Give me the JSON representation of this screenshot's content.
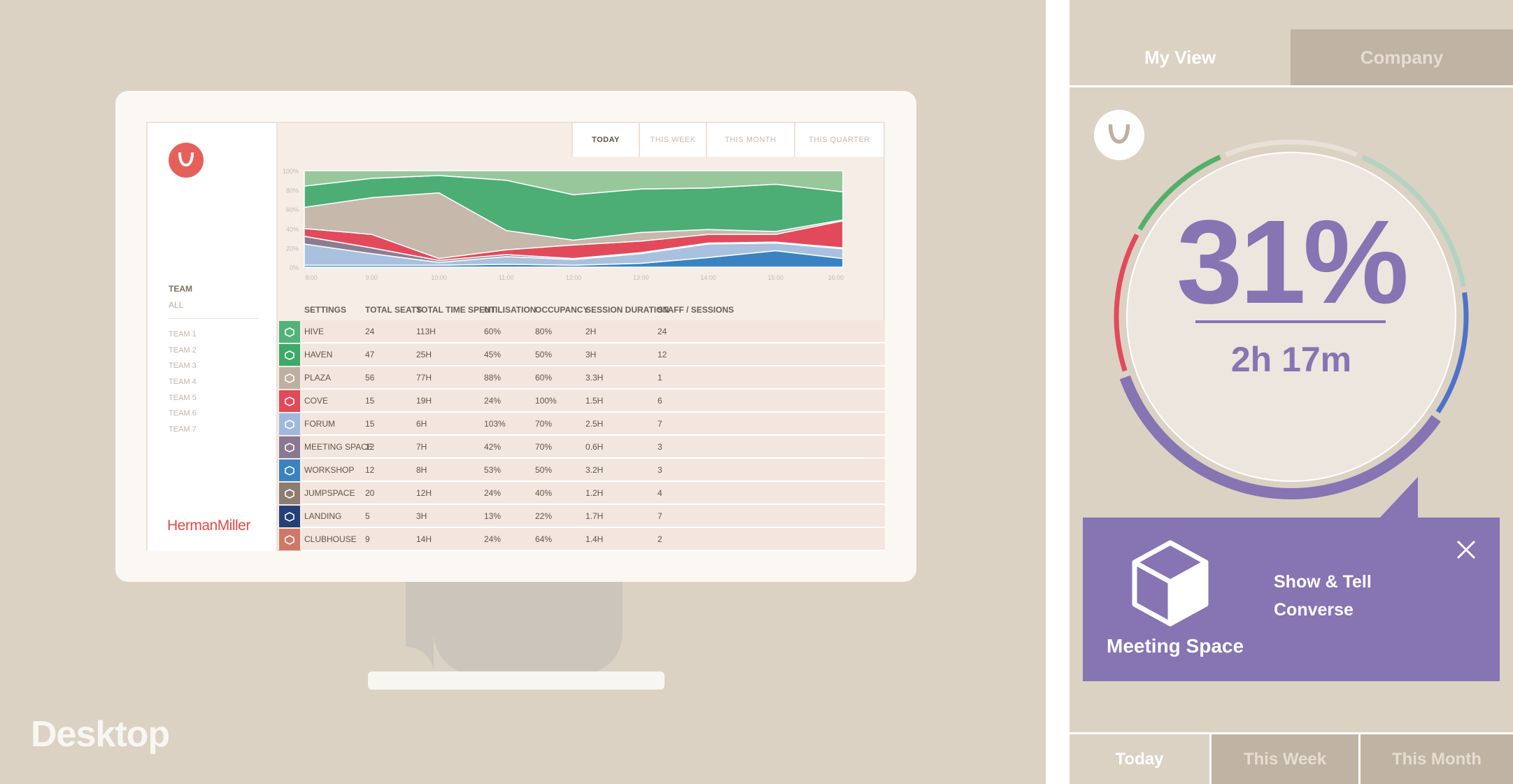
{
  "desktop": {
    "label": "Desktop",
    "brand": "HermanMiller",
    "sidebar": {
      "team_heading": "TEAM",
      "team_all": "ALL",
      "teams": [
        "TEAM 1",
        "TEAM 2",
        "TEAM 3",
        "TEAM 4",
        "TEAM 5",
        "TEAM 6",
        "TEAM 7"
      ]
    },
    "period_tabs": [
      {
        "label": "TODAY",
        "active": true
      },
      {
        "label": "THIS WEEK",
        "active": false
      },
      {
        "label": "THIS MONTH",
        "active": false
      },
      {
        "label": "THIS QUARTER",
        "active": false
      }
    ],
    "table": {
      "headers": [
        "SETTINGS",
        "TOTAL SEATS",
        "TOTAL TIME SPENT",
        "UTILISATION",
        "OCCUPANCY",
        "SESSION DURATION",
        "STAFF / SESSIONS"
      ],
      "rows": [
        {
          "icon": "hive-icon",
          "color": "#52b37a",
          "cells": [
            "HIVE",
            "24",
            "113H",
            "60%",
            "80%",
            "2H",
            "24"
          ]
        },
        {
          "icon": "haven-icon",
          "color": "#3fa96a",
          "cells": [
            "HAVEN",
            "47",
            "25H",
            "45%",
            "50%",
            "3H",
            "12"
          ]
        },
        {
          "icon": "plaza-icon",
          "color": "#bdb0a2",
          "cells": [
            "PLAZA",
            "56",
            "77H",
            "88%",
            "60%",
            "3.3H",
            "1"
          ]
        },
        {
          "icon": "cove-icon",
          "color": "#e24a5c",
          "cells": [
            "COVE",
            "15",
            "19H",
            "24%",
            "100%",
            "1.5H",
            "6"
          ]
        },
        {
          "icon": "forum-icon",
          "color": "#9fb8dc",
          "cells": [
            "FORUM",
            "15",
            "6H",
            "103%",
            "70%",
            "2.5H",
            "7"
          ]
        },
        {
          "icon": "meeting-space-icon",
          "color": "#8a7792",
          "cells": [
            "MEETING SPACE",
            "12",
            "7H",
            "42%",
            "70%",
            "0.6H",
            "3"
          ]
        },
        {
          "icon": "workshop-icon",
          "color": "#3a83c0",
          "cells": [
            "WORKSHOP",
            "12",
            "8H",
            "53%",
            "50%",
            "3.2H",
            "3"
          ]
        },
        {
          "icon": "jumpspace-icon",
          "color": "#8d7c70",
          "cells": [
            "JUMPSPACE",
            "20",
            "12H",
            "24%",
            "40%",
            "1.2H",
            "4"
          ]
        },
        {
          "icon": "landing-icon",
          "color": "#253f78",
          "cells": [
            "LANDING",
            "5",
            "3H",
            "13%",
            "22%",
            "1.7H",
            "7"
          ]
        },
        {
          "icon": "clubhouse-icon",
          "color": "#cf7868",
          "cells": [
            "CLUBHOUSE",
            "9",
            "14H",
            "24%",
            "64%",
            "1.4H",
            "2"
          ]
        }
      ]
    }
  },
  "chart_data": {
    "type": "area",
    "stacked": true,
    "x": [
      "8:00",
      "9:00",
      "10:00",
      "11:00",
      "12:00",
      "13:00",
      "14:00",
      "15:00",
      "16:00"
    ],
    "ylim": [
      0,
      100
    ],
    "yticks": [
      "100%",
      "80%",
      "60%",
      "40%",
      "20%",
      "0%"
    ],
    "series": [
      {
        "color": "#3a83c0",
        "values": [
          2,
          2,
          2,
          3,
          2,
          4,
          10,
          17,
          9
        ]
      },
      {
        "color": "#a9c1df",
        "values": [
          22,
          12,
          3,
          8,
          6,
          10,
          14,
          8,
          10
        ]
      },
      {
        "color": "#8d7c8f",
        "values": [
          8,
          6,
          2,
          2,
          1,
          1,
          1,
          1,
          1
        ]
      },
      {
        "color": "#e24a5c",
        "values": [
          8,
          14,
          2,
          5,
          14,
          12,
          9,
          8,
          28
        ]
      },
      {
        "color": "#c6b8aa",
        "values": [
          22,
          38,
          68,
          20,
          5,
          9,
          5,
          3,
          1
        ]
      },
      {
        "color": "#4cae75",
        "values": [
          22,
          20,
          18,
          52,
          47,
          45,
          43,
          49,
          29
        ]
      },
      {
        "color": "#98c79c",
        "values": [
          16,
          8,
          5,
          10,
          25,
          19,
          18,
          14,
          22
        ]
      }
    ],
    "grid": false,
    "legend": "none"
  },
  "mobile": {
    "tabs": [
      {
        "label": "My View",
        "active": true
      },
      {
        "label": "Company",
        "active": false
      }
    ],
    "utilisation": "31%",
    "utilisation_value": 31,
    "duration": "2h 17m",
    "popup": {
      "space_name": "Meeting Space",
      "activities": [
        "Show & Tell",
        "Converse"
      ]
    },
    "ring_colors": {
      "purple": "#8674b3",
      "red": "#e24a5c",
      "green": "#52b06a",
      "mint": "#b2d3c1",
      "blue": "#4f72c9",
      "light": "#e9e1d7"
    },
    "bottom_tabs": [
      {
        "label": "Today",
        "active": true
      },
      {
        "label": "This Week",
        "active": false
      },
      {
        "label": "This Month",
        "active": false
      }
    ]
  }
}
